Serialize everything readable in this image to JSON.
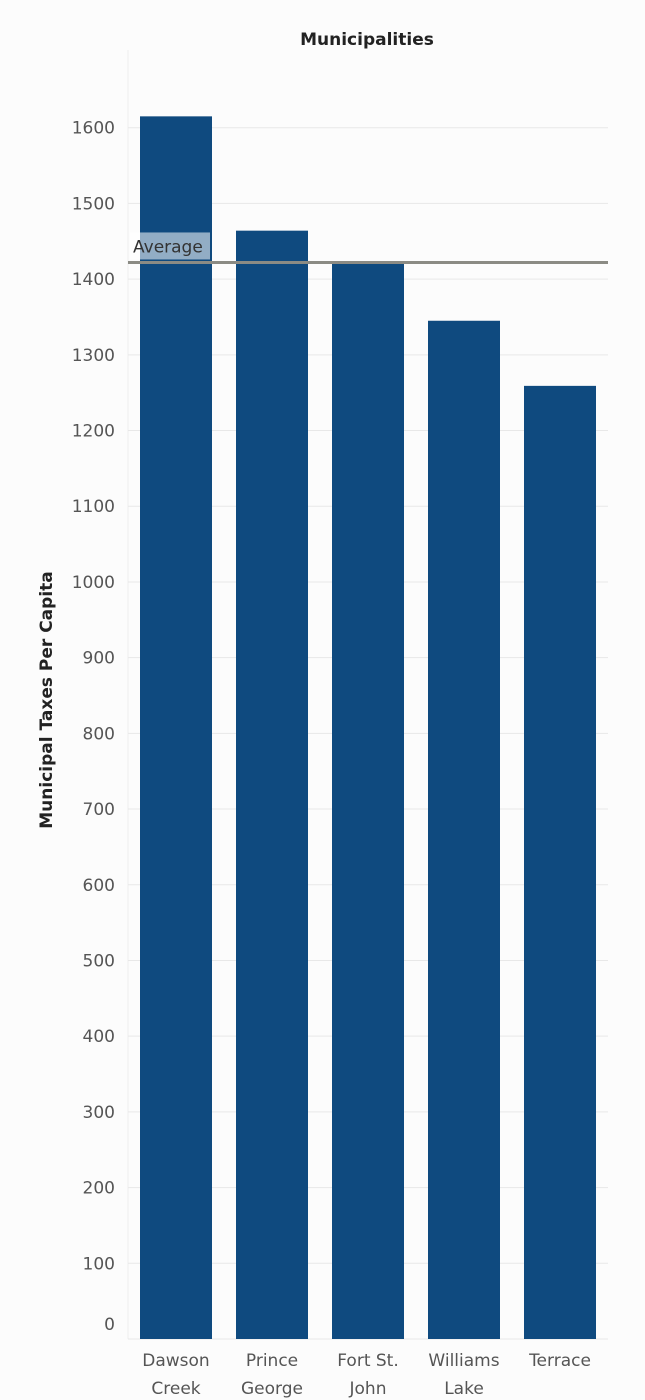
{
  "chart_data": {
    "type": "bar",
    "title": "Municipalities",
    "y_label": "Municipal Taxes Per Capita",
    "categories": [
      [
        "Dawson",
        "Creek"
      ],
      [
        "Prince",
        "George"
      ],
      [
        "Fort St.",
        "John"
      ],
      [
        "Williams",
        "Lake"
      ],
      [
        "Terrace"
      ]
    ],
    "values": [
      1615,
      1464,
      1423,
      1345,
      1259
    ],
    "color": "#0f4a7f",
    "ylim": [
      0,
      1700
    ],
    "yticks": [
      0,
      100,
      200,
      300,
      400,
      500,
      600,
      700,
      800,
      900,
      1000,
      1100,
      1200,
      1300,
      1400,
      1500,
      1600
    ],
    "grid": true,
    "average": {
      "label": "Average",
      "value": 1422,
      "color": "#8b8b84"
    }
  }
}
